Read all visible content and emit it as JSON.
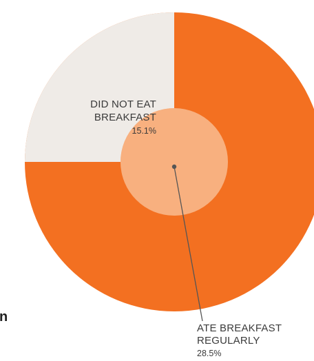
{
  "colors": {
    "outer_orange": "#f37021",
    "inner_peach": "#f8b07f",
    "cream_slice": "#efebe7",
    "leader_line": "#555555",
    "text": "#3a3a3a"
  },
  "chart_data": {
    "type": "pie",
    "title": "",
    "slices": [
      {
        "label_lines": [
          "DID NOT EAT",
          "BREAKFAST"
        ],
        "value_label": "15.1%",
        "value": 15.1,
        "color": "#efebe7"
      },
      {
        "label_lines": [
          "ATE BREAKFAST",
          "REGULARLY"
        ],
        "value_label": "28.5%",
        "value": 28.5,
        "color": "#f8b07f"
      }
    ],
    "legend": "none"
  },
  "clipped_text": "n."
}
